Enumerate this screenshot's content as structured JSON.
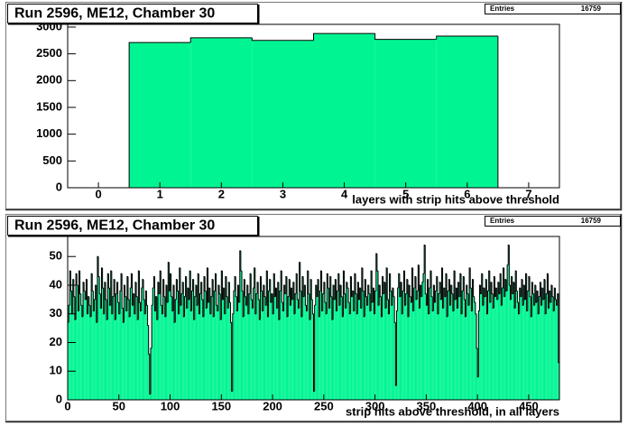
{
  "chart_data": [
    {
      "type": "histogram",
      "title": "Run 2596, ME12, Chamber 30",
      "stats": {
        "label": "Entries",
        "value": 16759
      },
      "xlabel": "layers with strip hits above threshold",
      "bins": [
        -0.5,
        0.5,
        1.5,
        2.5,
        3.5,
        4.5,
        5.5,
        6.5,
        7.5
      ],
      "values": [
        0,
        2710,
        2800,
        2750,
        2880,
        2770,
        2830,
        0
      ],
      "color": "#00f592",
      "xlim": [
        -0.5,
        7.5
      ],
      "ylim": [
        0,
        3050
      ],
      "xticks": [
        0,
        1,
        2,
        3,
        4,
        5,
        6,
        7
      ],
      "yticks": [
        0,
        500,
        1000,
        1500,
        2000,
        2500,
        3000
      ]
    },
    {
      "type": "histogram",
      "title": "Run 2596, ME12, Chamber 30",
      "stats": {
        "label": "Entries",
        "value": 16759
      },
      "xlabel": "strip hits above threshold, in all layers",
      "bins": [
        0,
        1,
        2,
        3,
        4,
        5,
        6,
        7,
        8,
        9,
        10,
        11,
        12,
        13,
        14,
        15,
        16,
        17,
        18,
        19,
        20,
        21,
        22,
        23,
        24,
        25,
        26,
        27,
        28,
        29,
        30,
        31,
        32,
        33,
        34,
        35,
        36,
        37,
        38,
        39,
        40,
        41,
        42,
        43,
        44,
        45,
        46,
        47,
        48,
        49,
        50,
        51,
        52,
        53,
        54,
        55,
        56,
        57,
        58,
        59,
        60,
        61,
        62,
        63,
        64,
        65,
        66,
        67,
        68,
        69,
        70,
        71,
        72,
        73,
        74,
        75,
        76,
        77,
        78,
        79,
        80,
        81,
        82,
        83,
        84,
        85,
        86,
        87,
        88,
        89,
        90,
        91,
        92,
        93,
        94,
        95,
        96,
        97,
        98,
        99,
        100,
        101,
        102,
        103,
        104,
        105,
        106,
        107,
        108,
        109,
        110,
        111,
        112,
        113,
        114,
        115,
        116,
        117,
        118,
        119,
        120,
        121,
        122,
        123,
        124,
        125,
        126,
        127,
        128,
        129,
        130,
        131,
        132,
        133,
        134,
        135,
        136,
        137,
        138,
        139,
        140,
        141,
        142,
        143,
        144,
        145,
        146,
        147,
        148,
        149,
        150,
        151,
        152,
        153,
        154,
        155,
        156,
        157,
        158,
        159,
        160,
        161,
        162,
        163,
        164,
        165,
        166,
        167,
        168,
        169,
        170,
        171,
        172,
        173,
        174,
        175,
        176,
        177,
        178,
        179,
        180,
        181,
        182,
        183,
        184,
        185,
        186,
        187,
        188,
        189,
        190,
        191,
        192,
        193,
        194,
        195,
        196,
        197,
        198,
        199,
        200,
        201,
        202,
        203,
        204,
        205,
        206,
        207,
        208,
        209,
        210,
        211,
        212,
        213,
        214,
        215,
        216,
        217,
        218,
        219,
        220,
        221,
        222,
        223,
        224,
        225,
        226,
        227,
        228,
        229,
        230,
        231,
        232,
        233,
        234,
        235,
        236,
        237,
        238,
        239,
        240,
        241,
        242,
        243,
        244,
        245,
        246,
        247,
        248,
        249,
        250,
        251,
        252,
        253,
        254,
        255,
        256,
        257,
        258,
        259,
        260,
        261,
        262,
        263,
        264,
        265,
        266,
        267,
        268,
        269,
        270,
        271,
        272,
        273,
        274,
        275,
        276,
        277,
        278,
        279,
        280,
        281,
        282,
        283,
        284,
        285,
        286,
        287,
        288,
        289,
        290,
        291,
        292,
        293,
        294,
        295,
        296,
        297,
        298,
        299,
        300,
        301,
        302,
        303,
        304,
        305,
        306,
        307,
        308,
        309,
        310,
        311,
        312,
        313,
        314,
        315,
        316,
        317,
        318,
        319,
        320,
        321,
        322,
        323,
        324,
        325,
        326,
        327,
        328,
        329,
        330,
        331,
        332,
        333,
        334,
        335,
        336,
        337,
        338,
        339,
        340,
        341,
        342,
        343,
        344,
        345,
        346,
        347,
        348,
        349,
        350,
        351,
        352,
        353,
        354,
        355,
        356,
        357,
        358,
        359,
        360,
        361,
        362,
        363,
        364,
        365,
        366,
        367,
        368,
        369,
        370,
        371,
        372,
        373,
        374,
        375,
        376,
        377,
        378,
        379,
        380,
        381,
        382,
        383,
        384,
        385,
        386,
        387,
        388,
        389,
        390,
        391,
        392,
        393,
        394,
        395,
        396,
        397,
        398,
        399,
        400,
        401,
        402,
        403,
        404,
        405,
        406,
        407,
        408,
        409,
        410,
        411,
        412,
        413,
        414,
        415,
        416,
        417,
        418,
        419,
        420,
        421,
        422,
        423,
        424,
        425,
        426,
        427,
        428,
        429,
        430,
        431,
        432,
        433,
        434,
        435,
        436,
        437,
        438,
        439,
        440,
        441,
        442,
        443,
        444,
        445,
        446,
        447,
        448,
        449,
        450,
        451,
        452,
        453,
        454,
        455,
        456,
        457,
        458,
        459,
        460,
        461,
        462,
        463,
        464,
        465,
        466,
        467,
        468,
        469,
        470,
        471,
        472,
        473,
        474,
        475,
        476,
        477,
        478,
        479,
        480
      ],
      "values": [
        27,
        33,
        45,
        38,
        30,
        42,
        36,
        28,
        44,
        40,
        31,
        45,
        37,
        33,
        29,
        41,
        38,
        35,
        42,
        30,
        36,
        33,
        29,
        44,
        38,
        31,
        35,
        40,
        27,
        50,
        43,
        37,
        32,
        46,
        39,
        30,
        41,
        35,
        28,
        44,
        39,
        33,
        45,
        30,
        36,
        42,
        28,
        37,
        41,
        34,
        30,
        38,
        44,
        32,
        27,
        40,
        36,
        31,
        43,
        35,
        29,
        39,
        44,
        33,
        37,
        30,
        41,
        36,
        28,
        45,
        34,
        31,
        39,
        42,
        35,
        30,
        38,
        33,
        26,
        16,
        2,
        18,
        33,
        39,
        43,
        31,
        36,
        28,
        41,
        37,
        45,
        33,
        30,
        42,
        36,
        29,
        40,
        34,
        48,
        38,
        44,
        36,
        31,
        40,
        27,
        35,
        42,
        38,
        30,
        46,
        33,
        37,
        41,
        29,
        36,
        43,
        32,
        39,
        35,
        45,
        31,
        38,
        42,
        28,
        36,
        40,
        33,
        44,
        30,
        37,
        41,
        35,
        29,
        43,
        38,
        32,
        46,
        34,
        39,
        30,
        36,
        42,
        29,
        38,
        44,
        33,
        31,
        40,
        37,
        28,
        45,
        35,
        39,
        30,
        43,
        36,
        32,
        41,
        34,
        27,
        3,
        30,
        38,
        43,
        36,
        31,
        40,
        34,
        52,
        45,
        38,
        29,
        42,
        36,
        33,
        40,
        30,
        37,
        44,
        35,
        32,
        39,
        46,
        30,
        37,
        41,
        35,
        28,
        43,
        38,
        31,
        40,
        36,
        33,
        45,
        29,
        38,
        42,
        34,
        37,
        30,
        44,
        36,
        39,
        32,
        41,
        28,
        38,
        45,
        34,
        31,
        40,
        37,
        43,
        29,
        36,
        42,
        33,
        39,
        35,
        41,
        30,
        37,
        44,
        35,
        32,
        48,
        38,
        29,
        43,
        36,
        40,
        33,
        31,
        45,
        37,
        28,
        42,
        35,
        30,
        3,
        33,
        40,
        36,
        42,
        29,
        38,
        45,
        31,
        37,
        41,
        34,
        30,
        44,
        39,
        32,
        43,
        36,
        28,
        40,
        35,
        42,
        31,
        38,
        44,
        33,
        40,
        36,
        29,
        45,
        37,
        32,
        41,
        39,
        34,
        30,
        43,
        36,
        38,
        31,
        44,
        37,
        30,
        41,
        35,
        39,
        32,
        46,
        38,
        29,
        42,
        36,
        33,
        40,
        37,
        31,
        45,
        34,
        39,
        30,
        38,
        51,
        45,
        33,
        40,
        36,
        29,
        43,
        37,
        41,
        32,
        46,
        35,
        30,
        44,
        38,
        33,
        39,
        36,
        27,
        5,
        31,
        39,
        44,
        36,
        41,
        30,
        38,
        45,
        33,
        37,
        42,
        29,
        40,
        36,
        34,
        46,
        31,
        39,
        43,
        35,
        38,
        47,
        32,
        40,
        36,
        41,
        44,
        54,
        37,
        33,
        42,
        30,
        39,
        45,
        36,
        31,
        40,
        34,
        38,
        43,
        30,
        37,
        41,
        35,
        46,
        32,
        39,
        36,
        44,
        29,
        38,
        42,
        33,
        40,
        37,
        31,
        45,
        35,
        39,
        32,
        41,
        36,
        44,
        30,
        38,
        43,
        35,
        29,
        40,
        37,
        33,
        46,
        39,
        31,
        42,
        36,
        34,
        30,
        18,
        8,
        31,
        40,
        37,
        44,
        33,
        39,
        36,
        42,
        30,
        38,
        45,
        34,
        41,
        37,
        32,
        43,
        36,
        39,
        35,
        41,
        37,
        44,
        33,
        39,
        46,
        36,
        42,
        38,
        47,
        54,
        40,
        35,
        43,
        37,
        41,
        32,
        45,
        38,
        34,
        30,
        39,
        36,
        42,
        33,
        40,
        35,
        44,
        31,
        38,
        43,
        36,
        29,
        41,
        37,
        33,
        40,
        34,
        38,
        30,
        36,
        41,
        33,
        39,
        35,
        42,
        30,
        37,
        44,
        32,
        38,
        34,
        40,
        36,
        31,
        39,
        35,
        33,
        37,
        13
      ],
      "color": "#00f592",
      "xlim": [
        0,
        480
      ],
      "ylim": [
        0,
        57
      ],
      "xticks": [
        0,
        50,
        100,
        150,
        200,
        250,
        300,
        350,
        400,
        450
      ],
      "yticks": [
        0,
        10,
        20,
        30,
        40,
        50
      ]
    }
  ]
}
